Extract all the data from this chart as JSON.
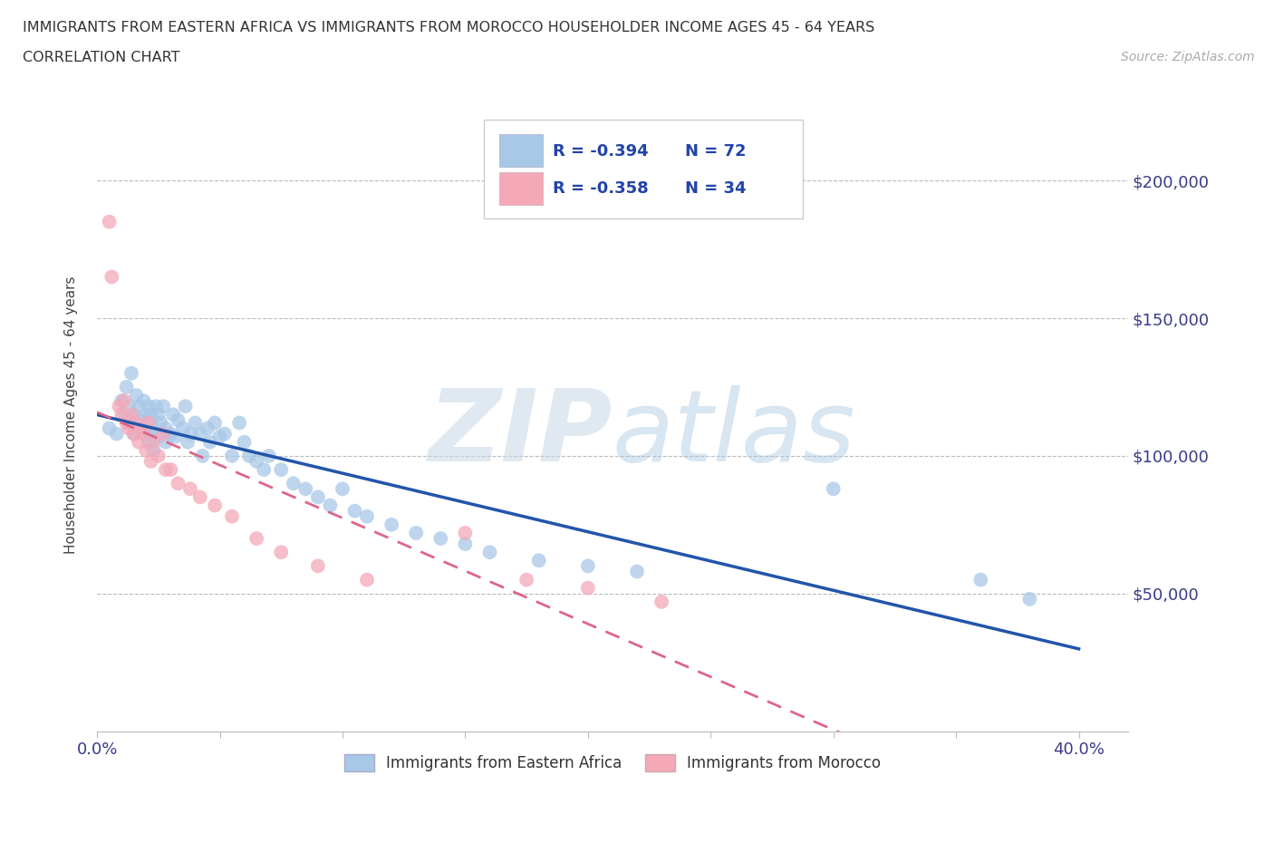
{
  "title_line1": "IMMIGRANTS FROM EASTERN AFRICA VS IMMIGRANTS FROM MOROCCO HOUSEHOLDER INCOME AGES 45 - 64 YEARS",
  "title_line2": "CORRELATION CHART",
  "source_text": "Source: ZipAtlas.com",
  "ylabel": "Householder Income Ages 45 - 64 years",
  "xlim": [
    0.0,
    0.42
  ],
  "ylim": [
    0,
    230000
  ],
  "xticks": [
    0.0,
    0.05,
    0.1,
    0.15,
    0.2,
    0.25,
    0.3,
    0.35,
    0.4
  ],
  "ytick_positions": [
    50000,
    100000,
    150000,
    200000
  ],
  "ytick_labels": [
    "$50,000",
    "$100,000",
    "$150,000",
    "$200,000"
  ],
  "blue_color": "#a8c8e8",
  "pink_color": "#f4a8b8",
  "blue_line_color": "#2255aa",
  "pink_line_color": "#dd6688",
  "legend_r_blue": "R = -0.394",
  "legend_n_blue": "N = 72",
  "legend_r_pink": "R = -0.358",
  "legend_n_pink": "N = 34",
  "watermark_zip": "ZIP",
  "watermark_atlas": "atlas",
  "blue_scatter_x": [
    0.005,
    0.008,
    0.01,
    0.011,
    0.012,
    0.013,
    0.013,
    0.014,
    0.015,
    0.015,
    0.016,
    0.017,
    0.018,
    0.019,
    0.019,
    0.02,
    0.02,
    0.021,
    0.021,
    0.022,
    0.022,
    0.023,
    0.023,
    0.024,
    0.025,
    0.025,
    0.026,
    0.027,
    0.028,
    0.028,
    0.03,
    0.031,
    0.032,
    0.033,
    0.035,
    0.036,
    0.037,
    0.038,
    0.04,
    0.042,
    0.043,
    0.045,
    0.046,
    0.048,
    0.05,
    0.052,
    0.055,
    0.058,
    0.06,
    0.062,
    0.065,
    0.068,
    0.07,
    0.075,
    0.08,
    0.085,
    0.09,
    0.095,
    0.1,
    0.105,
    0.11,
    0.12,
    0.13,
    0.14,
    0.15,
    0.16,
    0.18,
    0.2,
    0.22,
    0.3,
    0.36,
    0.38
  ],
  "blue_scatter_y": [
    110000,
    108000,
    120000,
    115000,
    125000,
    118000,
    112000,
    130000,
    115000,
    108000,
    122000,
    118000,
    113000,
    120000,
    110000,
    115000,
    108000,
    118000,
    105000,
    115000,
    108000,
    110000,
    102000,
    118000,
    115000,
    107000,
    112000,
    118000,
    110000,
    105000,
    108000,
    115000,
    107000,
    113000,
    110000,
    118000,
    105000,
    108000,
    112000,
    108000,
    100000,
    110000,
    105000,
    112000,
    107000,
    108000,
    100000,
    112000,
    105000,
    100000,
    98000,
    95000,
    100000,
    95000,
    90000,
    88000,
    85000,
    82000,
    88000,
    80000,
    78000,
    75000,
    72000,
    70000,
    68000,
    65000,
    62000,
    60000,
    58000,
    88000,
    55000,
    48000
  ],
  "pink_scatter_x": [
    0.005,
    0.006,
    0.009,
    0.01,
    0.011,
    0.012,
    0.013,
    0.014,
    0.015,
    0.016,
    0.017,
    0.018,
    0.019,
    0.02,
    0.021,
    0.022,
    0.023,
    0.025,
    0.027,
    0.028,
    0.03,
    0.033,
    0.038,
    0.042,
    0.048,
    0.055,
    0.065,
    0.075,
    0.09,
    0.11,
    0.15,
    0.175,
    0.2,
    0.23
  ],
  "pink_scatter_y": [
    185000,
    165000,
    118000,
    115000,
    120000,
    112000,
    110000,
    115000,
    108000,
    112000,
    105000,
    110000,
    108000,
    102000,
    112000,
    98000,
    105000,
    100000,
    108000,
    95000,
    95000,
    90000,
    88000,
    85000,
    82000,
    78000,
    70000,
    65000,
    60000,
    55000,
    72000,
    55000,
    52000,
    47000
  ]
}
